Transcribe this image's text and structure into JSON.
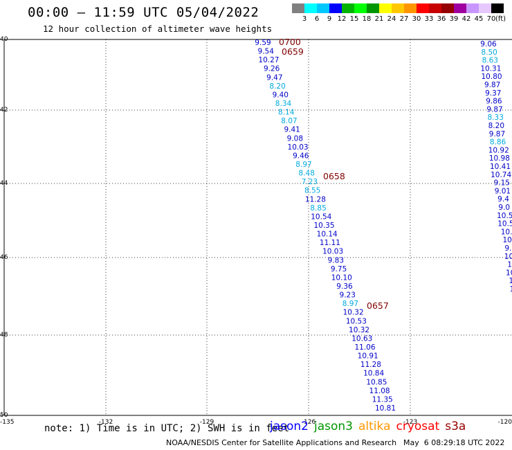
{
  "header": {
    "title": "00:00 — 11:59 UTC 05/04/2022",
    "subtitle": "12 hour collection of altimeter wave heights"
  },
  "legend": {
    "colors": [
      "#808080",
      "#00ffff",
      "#00c8ff",
      "#0000ff",
      "#00b400",
      "#00ff00",
      "#009600",
      "#ffff00",
      "#ffc800",
      "#ff9600",
      "#ff0000",
      "#c80000",
      "#960000",
      "#a000a0",
      "#c896ff",
      "#e6c8ff",
      "#000000"
    ],
    "labels": [
      "3",
      "6",
      "9",
      "12",
      "15",
      "18",
      "21",
      "24",
      "27",
      "30",
      "33",
      "36",
      "39",
      "42",
      "45",
      "70"
    ],
    "unit": "(ft)"
  },
  "axes": {
    "lat_labels": [
      "40",
      "42",
      "44",
      "46",
      "48",
      "50"
    ],
    "lon_labels": [
      "-135",
      "-132",
      "-129",
      "-126",
      "-123",
      "-120"
    ]
  },
  "time_labels": [
    "0700",
    "0659",
    "0658",
    "0657"
  ],
  "track_main": [
    {
      "v": "9.59",
      "c": "blue"
    },
    {
      "v": "9.54",
      "c": "blue"
    },
    {
      "v": "10.27",
      "c": "blue"
    },
    {
      "v": "9.26",
      "c": "blue"
    },
    {
      "v": "9.47",
      "c": "blue"
    },
    {
      "v": "8.20",
      "c": "cyan"
    },
    {
      "v": "9.40",
      "c": "blue"
    },
    {
      "v": "8.34",
      "c": "cyan"
    },
    {
      "v": "8.14",
      "c": "cyan"
    },
    {
      "v": "8.07",
      "c": "cyan"
    },
    {
      "v": "9.41",
      "c": "blue"
    },
    {
      "v": "9.08",
      "c": "blue"
    },
    {
      "v": "10.03",
      "c": "blue"
    },
    {
      "v": "9.46",
      "c": "blue"
    },
    {
      "v": "8.97",
      "c": "cyan"
    },
    {
      "v": "8.48",
      "c": "cyan"
    },
    {
      "v": "7.23",
      "c": "cyan"
    },
    {
      "v": "8.55",
      "c": "cyan"
    },
    {
      "v": "11.28",
      "c": "blue"
    },
    {
      "v": "8.85",
      "c": "cyan"
    },
    {
      "v": "10.54",
      "c": "blue"
    },
    {
      "v": "10.35",
      "c": "blue"
    },
    {
      "v": "10.14",
      "c": "blue"
    },
    {
      "v": "11.11",
      "c": "blue"
    },
    {
      "v": "10.03",
      "c": "blue"
    },
    {
      "v": "9.83",
      "c": "blue"
    },
    {
      "v": "9.75",
      "c": "blue"
    },
    {
      "v": "10.10",
      "c": "blue"
    },
    {
      "v": "9.36",
      "c": "blue"
    },
    {
      "v": "9.23",
      "c": "blue"
    },
    {
      "v": "8.97",
      "c": "cyan"
    },
    {
      "v": "10.32",
      "c": "blue"
    },
    {
      "v": "10.53",
      "c": "blue"
    },
    {
      "v": "10.32",
      "c": "blue"
    },
    {
      "v": "10.63",
      "c": "blue"
    },
    {
      "v": "11.06",
      "c": "blue"
    },
    {
      "v": "10.91",
      "c": "blue"
    },
    {
      "v": "11.28",
      "c": "blue"
    },
    {
      "v": "10.84",
      "c": "blue"
    },
    {
      "v": "10.85",
      "c": "blue"
    },
    {
      "v": "11.08",
      "c": "blue"
    },
    {
      "v": "11.35",
      "c": "blue"
    },
    {
      "v": "10.81",
      "c": "blue"
    }
  ],
  "track_east": [
    {
      "v": "9.06",
      "c": "blue"
    },
    {
      "v": "8.50",
      "c": "cyan"
    },
    {
      "v": "8.63",
      "c": "cyan"
    },
    {
      "v": "10.31",
      "c": "blue"
    },
    {
      "v": "10.80",
      "c": "blue"
    },
    {
      "v": "9.87",
      "c": "blue"
    },
    {
      "v": "9.37",
      "c": "blue"
    },
    {
      "v": "9.86",
      "c": "blue"
    },
    {
      "v": "9.87",
      "c": "blue"
    },
    {
      "v": "8.33",
      "c": "cyan"
    },
    {
      "v": "8.20",
      "c": "blue"
    },
    {
      "v": "9.87",
      "c": "blue"
    },
    {
      "v": "8.86",
      "c": "cyan"
    },
    {
      "v": "10.92",
      "c": "blue"
    },
    {
      "v": "10.98",
      "c": "blue"
    },
    {
      "v": "10.41",
      "c": "blue"
    },
    {
      "v": "10.74",
      "c": "blue"
    },
    {
      "v": "9.15",
      "c": "blue"
    },
    {
      "v": "9.01",
      "c": "blue"
    },
    {
      "v": "9.4",
      "c": "blue"
    },
    {
      "v": "9.0",
      "c": "blue"
    },
    {
      "v": "10.5",
      "c": "blue"
    },
    {
      "v": "10.5",
      "c": "blue"
    },
    {
      "v": "10.",
      "c": "blue"
    },
    {
      "v": "10",
      "c": "blue"
    },
    {
      "v": "9.",
      "c": "blue"
    },
    {
      "v": "10",
      "c": "blue"
    },
    {
      "v": "1",
      "c": "blue"
    },
    {
      "v": "10",
      "c": "blue"
    },
    {
      "v": "1",
      "c": "blue"
    },
    {
      "v": "1",
      "c": "blue"
    }
  ],
  "footer": {
    "note": "note: 1) Time is in UTC; 2) SWH is in feet",
    "satellites": [
      {
        "name": "jason2",
        "color": "#0000ff"
      },
      {
        "name": "jason3",
        "color": "#009600"
      },
      {
        "name": "altika",
        "color": "#ff9600"
      },
      {
        "name": "cryosat",
        "color": "#ff0000"
      },
      {
        "name": "s3a",
        "color": "#960000"
      }
    ],
    "credit": "NOAA/NESDIS Center for Satellite Applications and Research",
    "timestamp": "May  6 08:29:18 UTC 2022"
  }
}
